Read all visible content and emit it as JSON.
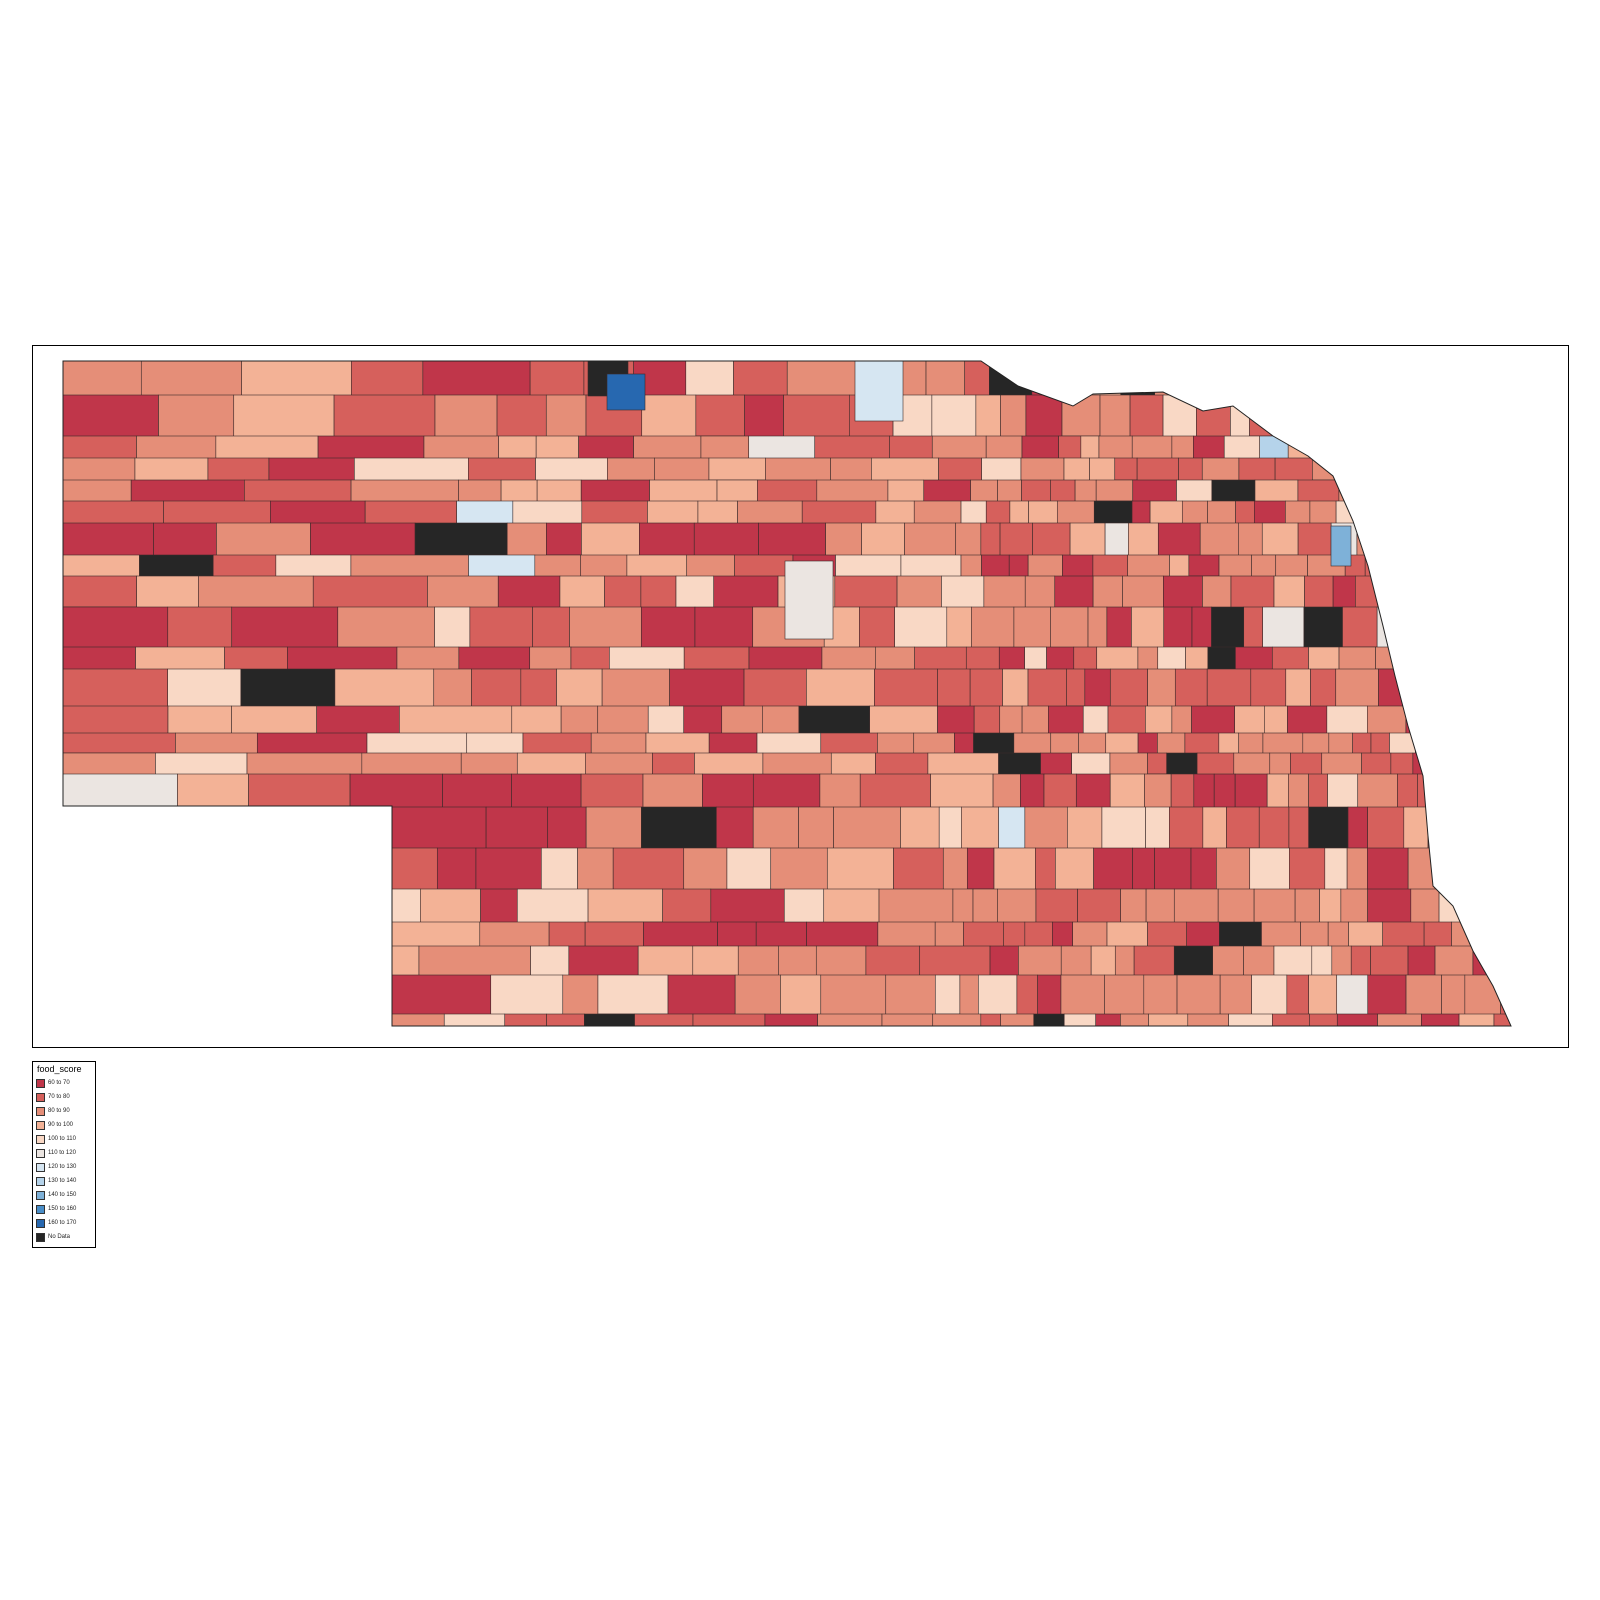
{
  "map": {
    "region": "Nebraska",
    "variable": "food_score",
    "palette_note": "diverging red-to-blue, black for missing"
  },
  "legend": {
    "title": "food_score",
    "items": [
      {
        "label": "60 to 70",
        "color": "#c0364a"
      },
      {
        "label": "70 to 80",
        "color": "#d6605c"
      },
      {
        "label": "80 to 90",
        "color": "#e58e78"
      },
      {
        "label": "90 to 100",
        "color": "#f3b296"
      },
      {
        "label": "100 to 110",
        "color": "#f9d8c5"
      },
      {
        "label": "110 to 120",
        "color": "#ebe5e1"
      },
      {
        "label": "120 to 130",
        "color": "#d6e6f2"
      },
      {
        "label": "130 to 140",
        "color": "#b5d3ea"
      },
      {
        "label": "140 to 150",
        "color": "#7eb1d8"
      },
      {
        "label": "150 to 160",
        "color": "#4a8ec8"
      },
      {
        "label": "160 to 170",
        "color": "#2768b0"
      },
      {
        "label": "No Data",
        "color": "#262626"
      }
    ]
  }
}
